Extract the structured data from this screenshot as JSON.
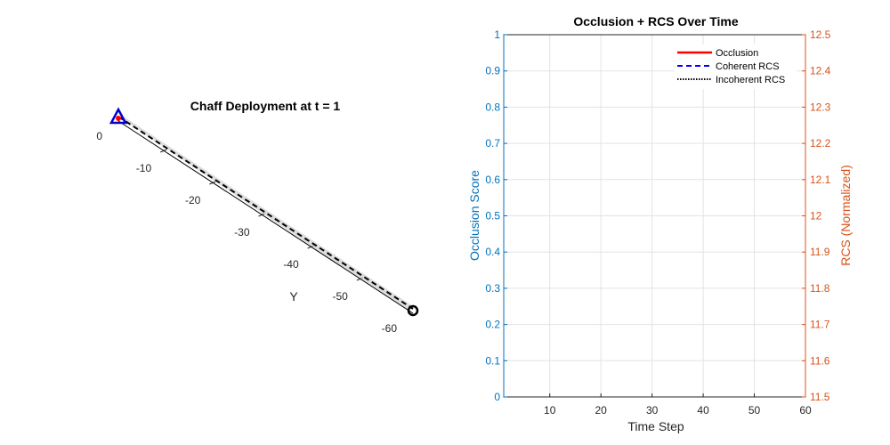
{
  "chart_data": [
    {
      "type": "line",
      "title": "Chaff Deployment at t = 1",
      "ylabel": "Y",
      "y_ticks": [
        0,
        -10,
        -20,
        -30,
        -40,
        -50,
        -60
      ],
      "ylim": [
        -60,
        0
      ],
      "markers": [
        {
          "name": "radar",
          "shape": "triangle",
          "color": "#0000cc",
          "y": 0
        },
        {
          "name": "chaff",
          "shape": "dot",
          "color": "#ff0000",
          "y": 0
        },
        {
          "name": "target",
          "shape": "circle",
          "color": "#000000",
          "y": -60
        }
      ],
      "series": [
        {
          "style": "solid",
          "color": "#000000",
          "y_from": 0,
          "y_to": -60
        },
        {
          "style": "dashed",
          "color": "#000000",
          "y_from": 0,
          "y_to": -60
        }
      ]
    },
    {
      "type": "line",
      "title": "Occlusion + RCS Over Time",
      "xlabel": "Time Step",
      "ylabel": "Occlusion Score",
      "y2label": "RCS (Normalized)",
      "xlim": [
        1,
        60
      ],
      "ylim": [
        0,
        1
      ],
      "y2lim": [
        11.5,
        12.5
      ],
      "x_ticks": [
        10,
        20,
        30,
        40,
        50,
        60
      ],
      "y_ticks": [
        0,
        0.1,
        0.2,
        0.3,
        0.4,
        0.5,
        0.6,
        0.7,
        0.8,
        0.9,
        1
      ],
      "y2_ticks": [
        11.5,
        11.6,
        11.7,
        11.8,
        11.9,
        12,
        12.1,
        12.2,
        12.3,
        12.4,
        12.5
      ],
      "grid": true,
      "legend_position": "top-right",
      "colors": {
        "left_axis": "#0072bd",
        "right_axis": "#d95319"
      },
      "series": [
        {
          "name": "Occlusion",
          "color": "#ff0000",
          "style": "solid",
          "values": []
        },
        {
          "name": "Coherent RCS",
          "color": "#0000ff",
          "style": "dashed",
          "values": []
        },
        {
          "name": "Incoherent RCS",
          "color": "#000000",
          "style": "dotted",
          "values": []
        }
      ]
    }
  ]
}
